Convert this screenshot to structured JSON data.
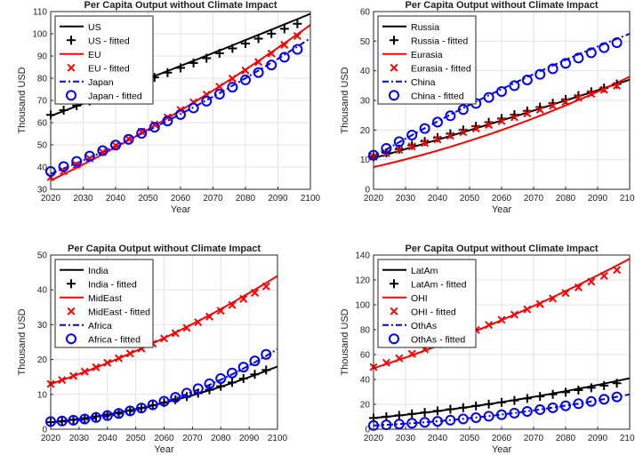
{
  "chart_data": [
    {
      "type": "line",
      "title": "Per Capita Output without Climate Impact",
      "xlabel": "Year",
      "ylabel": "Thousand USD",
      "xlim": [
        2020,
        2100
      ],
      "ylim": [
        30,
        110
      ],
      "xticks": [
        2020,
        2030,
        2040,
        2050,
        2060,
        2070,
        2080,
        2090,
        2100
      ],
      "yticks": [
        30,
        40,
        50,
        60,
        70,
        80,
        90,
        100,
        110
      ],
      "grid": true,
      "legend_position": "top-left",
      "series": [
        {
          "name": "US",
          "color": "#000000",
          "x": [
            2020,
            2100
          ],
          "values": [
            63,
            109
          ],
          "curve": 0.02
        },
        {
          "name": "EU",
          "color": "#ff0000",
          "x": [
            2020,
            2100
          ],
          "values": [
            34,
            104
          ],
          "curve": 0.1
        },
        {
          "name": "Japan",
          "color": "#0000ff",
          "x": [
            2020,
            2100
          ],
          "values": [
            37,
            98
          ],
          "curve": 0.12
        }
      ],
      "fitted": [
        {
          "name": "US - fitted",
          "marker": "plus",
          "color": "#000000",
          "x": [
            2020,
            2096
          ],
          "values": [
            63.5,
            104.5
          ],
          "curve": 0.02
        },
        {
          "name": "EU - fitted",
          "marker": "x",
          "color": "#ff0000",
          "x": [
            2020,
            2096
          ],
          "values": [
            35.5,
            99
          ],
          "curve": 0.1
        },
        {
          "name": "Japan - fitted",
          "marker": "circle",
          "color": "#0000ff",
          "x": [
            2020,
            2096
          ],
          "values": [
            38,
            93
          ],
          "curve": 0.12
        }
      ]
    },
    {
      "type": "line",
      "title": "Per Capita Output without Climate Impact",
      "xlabel": "Year",
      "ylabel": "Thousand USD",
      "xlim": [
        2020,
        2100
      ],
      "ylim": [
        0,
        60
      ],
      "xticks": [
        2020,
        2030,
        2040,
        2050,
        2060,
        2070,
        2080,
        2090,
        2100
      ],
      "yticks": [
        0,
        10,
        20,
        30,
        40,
        50,
        60
      ],
      "grid": true,
      "legend_position": "top-left",
      "series": [
        {
          "name": "Russia",
          "color": "#000000",
          "x": [
            2020,
            2100
          ],
          "values": [
            10.5,
            37
          ],
          "curve": 0.04
        },
        {
          "name": "Eurasia",
          "color": "#ff0000",
          "x": [
            2020,
            2100
          ],
          "values": [
            7.5,
            38
          ],
          "curve": 0.18
        },
        {
          "name": "China",
          "color": "#0000ff",
          "x": [
            2020,
            2100
          ],
          "values": [
            11,
            52.5
          ],
          "curve": -0.1
        }
      ],
      "fitted": [
        {
          "name": "Russia - fitted",
          "marker": "plus",
          "color": "#000000",
          "x": [
            2020,
            2096
          ],
          "values": [
            11,
            35.5
          ],
          "curve": 0.0
        },
        {
          "name": "Eurasia - fitted",
          "marker": "x",
          "color": "#ff0000",
          "x": [
            2020,
            2096
          ],
          "values": [
            11,
            35
          ],
          "curve": 0.05
        },
        {
          "name": "China - fitted",
          "marker": "circle",
          "color": "#0000ff",
          "x": [
            2020,
            2096
          ],
          "values": [
            11.5,
            49.5
          ],
          "curve": -0.08
        }
      ]
    },
    {
      "type": "line",
      "title": "Per Capita Output without Climate Impact",
      "xlabel": "Year",
      "ylabel": "Thousand USD",
      "xlim": [
        2020,
        2100
      ],
      "ylim": [
        0,
        50
      ],
      "xticks": [
        2020,
        2030,
        2040,
        2050,
        2060,
        2070,
        2080,
        2090,
        2100
      ],
      "yticks": [
        0,
        10,
        20,
        30,
        40,
        50
      ],
      "grid": true,
      "legend_position": "top-left",
      "series": [
        {
          "name": "India",
          "color": "#000000",
          "x": [
            2020,
            2100
          ],
          "values": [
            2,
            18
          ],
          "curve": 0.3
        },
        {
          "name": "MidEast",
          "color": "#ff0000",
          "x": [
            2020,
            2100
          ],
          "values": [
            13,
            44
          ],
          "curve": 0.15
        },
        {
          "name": "Africa",
          "color": "#0000ff",
          "x": [
            2020,
            2100
          ],
          "values": [
            2,
            23
          ],
          "curve": 0.45
        }
      ],
      "fitted": [
        {
          "name": "India - fitted",
          "marker": "plus",
          "color": "#000000",
          "x": [
            2020,
            2096
          ],
          "values": [
            2,
            17
          ],
          "curve": 0.3
        },
        {
          "name": "MidEast - fitted",
          "marker": "x",
          "color": "#ff0000",
          "x": [
            2020,
            2096
          ],
          "values": [
            13,
            41
          ],
          "curve": 0.12
        },
        {
          "name": "Africa - fitted",
          "marker": "circle",
          "color": "#0000ff",
          "x": [
            2020,
            2096
          ],
          "values": [
            2.2,
            21.5
          ],
          "curve": 0.45
        }
      ]
    },
    {
      "type": "line",
      "title": "Per Capita Output without Climate Impact",
      "xlabel": "Year",
      "ylabel": "Thousand USD",
      "xlim": [
        2020,
        2100
      ],
      "ylim": [
        0,
        140
      ],
      "xticks": [
        2020,
        2030,
        2040,
        2050,
        2060,
        2070,
        2080,
        2090,
        2100
      ],
      "yticks": [
        0,
        20,
        40,
        60,
        80,
        100,
        120,
        140
      ],
      "grid": true,
      "legend_position": "top-left",
      "series": [
        {
          "name": "LatAm",
          "color": "#000000",
          "x": [
            2020,
            2100
          ],
          "values": [
            9,
            41
          ],
          "curve": 0.2
        },
        {
          "name": "OHI",
          "color": "#ff0000",
          "x": [
            2020,
            2100
          ],
          "values": [
            49,
            137
          ],
          "curve": 0.12
        },
        {
          "name": "OthAs",
          "color": "#0000ff",
          "x": [
            2020,
            2100
          ],
          "values": [
            3,
            28
          ],
          "curve": 0.3
        }
      ],
      "fitted": [
        {
          "name": "LatAm - fitted",
          "marker": "plus",
          "color": "#000000",
          "x": [
            2020,
            2096
          ],
          "values": [
            9,
            37
          ],
          "curve": 0.15
        },
        {
          "name": "OHI - fitted",
          "marker": "x",
          "color": "#ff0000",
          "x": [
            2020,
            2096
          ],
          "values": [
            50,
            128
          ],
          "curve": 0.08
        },
        {
          "name": "OthAs - fitted",
          "marker": "circle",
          "color": "#0000ff",
          "x": [
            2020,
            2096
          ],
          "values": [
            3,
            26
          ],
          "curve": 0.3
        }
      ]
    }
  ]
}
